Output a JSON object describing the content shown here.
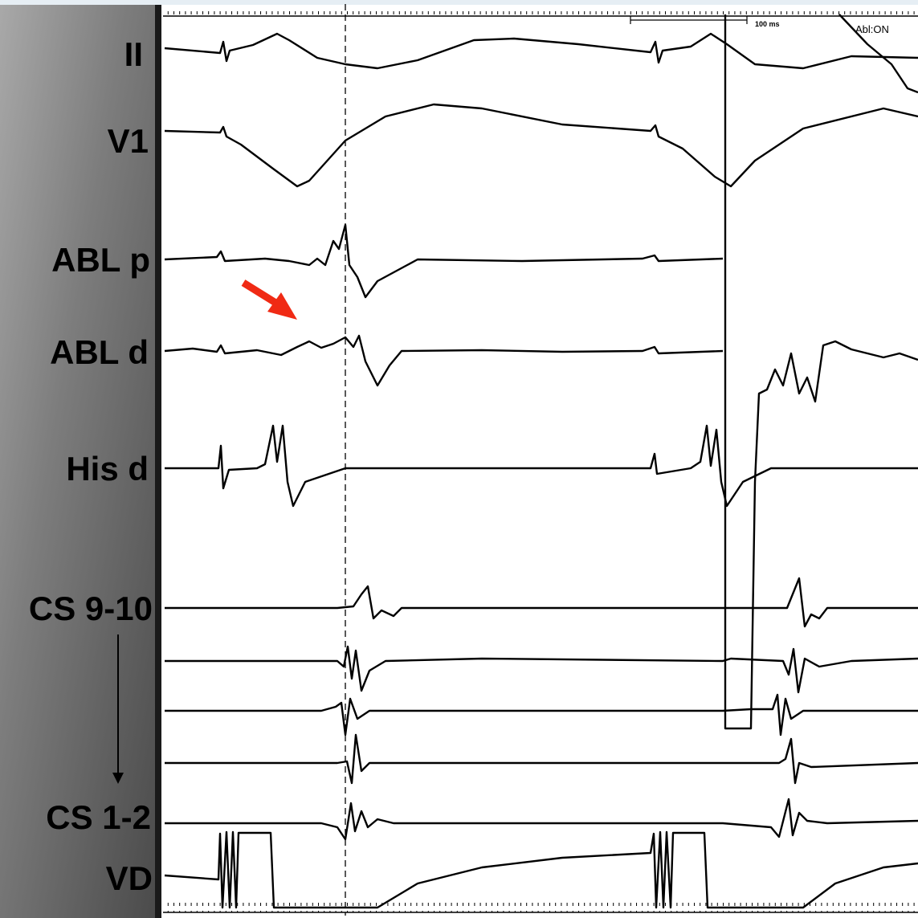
{
  "channels": [
    "II",
    "V1",
    "ABL p",
    "ABL d",
    "His d",
    "CS 9-10",
    "CS 1-2",
    "VD"
  ],
  "scale_label": "100 ms",
  "status": "Abl:ON"
}
